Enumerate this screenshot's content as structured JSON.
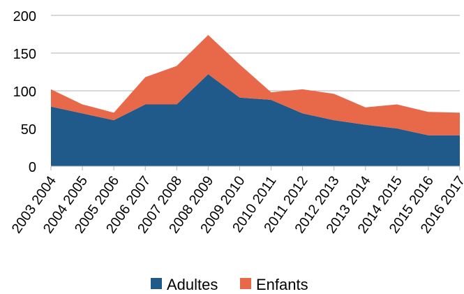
{
  "chart_data": {
    "type": "area",
    "stacked": true,
    "categories": [
      "2003 2004",
      "2004 2005",
      "2005 2006",
      "2006 2007",
      "2007 2008",
      "2008 2009",
      "2009 2010",
      "2010 2011",
      "2011 2012",
      "2012 2013",
      "2013 2014",
      "2014 2015",
      "2015 2016",
      "2016 2017"
    ],
    "series": [
      {
        "name": "Adultes",
        "color": "#1f5a8a",
        "values": [
          79,
          70,
          61,
          82,
          82,
          122,
          91,
          88,
          70,
          61,
          55,
          50,
          41,
          41
        ]
      },
      {
        "name": "Enfants",
        "color": "#e8694a",
        "values": [
          23,
          12,
          10,
          36,
          51,
          52,
          44,
          10,
          32,
          35,
          23,
          32,
          31,
          30
        ]
      }
    ],
    "yticks": [
      "0",
      "50",
      "100",
      "150",
      "200"
    ],
    "ylim": [
      0,
      200
    ],
    "grid": true,
    "legend": "bottom"
  }
}
